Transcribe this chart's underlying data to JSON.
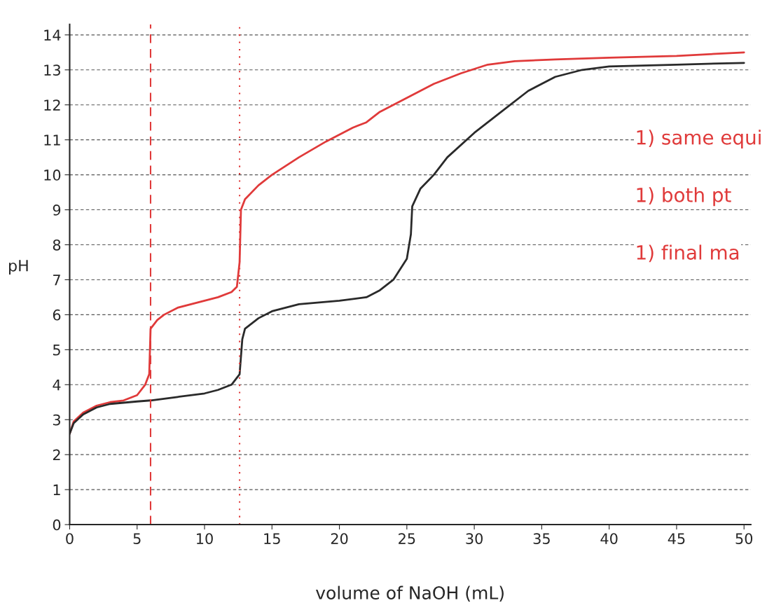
{
  "chart_data": {
    "type": "line",
    "xlabel": "volume of NaOH (mL)",
    "ylabel": "pH",
    "xlim": [
      0,
      50.5
    ],
    "ylim": [
      0,
      14.3
    ],
    "xticks": [
      0,
      5,
      10,
      15,
      20,
      25,
      30,
      35,
      40,
      45,
      50
    ],
    "yticks": [
      0,
      1,
      2,
      3,
      4,
      5,
      6,
      7,
      8,
      9,
      10,
      11,
      12,
      13,
      14
    ],
    "grid": "y",
    "legend": false,
    "marker": "none",
    "line_style": "solid",
    "series": [
      {
        "color": "#e03a3a",
        "x": [
          0,
          0.3,
          1,
          2,
          3,
          4,
          5,
          5.6,
          5.9,
          6.0,
          6.5,
          7,
          8,
          9,
          10,
          11,
          12,
          12.4,
          12.6,
          12.7,
          13,
          14,
          15,
          17,
          19,
          21,
          22,
          23,
          25,
          27,
          29,
          31,
          33,
          36,
          40,
          45,
          50
        ],
        "values": [
          2.6,
          2.95,
          3.2,
          3.4,
          3.5,
          3.55,
          3.7,
          4.0,
          4.3,
          5.6,
          5.85,
          6.0,
          6.2,
          6.3,
          6.4,
          6.5,
          6.65,
          6.8,
          7.5,
          9.0,
          9.3,
          9.7,
          10.0,
          10.5,
          10.95,
          11.35,
          11.5,
          11.8,
          12.2,
          12.6,
          12.9,
          13.15,
          13.25,
          13.3,
          13.35,
          13.4,
          13.5
        ]
      },
      {
        "color": "#2a2a2a",
        "x": [
          0,
          0.3,
          1,
          2,
          3,
          5,
          6,
          8,
          10,
          11,
          12,
          12.6,
          12.8,
          13,
          14,
          15,
          17,
          20,
          22,
          23,
          24,
          25,
          25.3,
          25.4,
          26,
          27,
          28,
          30,
          32,
          34,
          36,
          38,
          40,
          45,
          50
        ],
        "values": [
          2.6,
          2.9,
          3.15,
          3.35,
          3.45,
          3.52,
          3.55,
          3.65,
          3.75,
          3.85,
          4.0,
          4.3,
          5.3,
          5.6,
          5.9,
          6.1,
          6.3,
          6.4,
          6.5,
          6.7,
          7.0,
          7.6,
          8.3,
          9.1,
          9.6,
          10.0,
          10.5,
          11.2,
          11.8,
          12.4,
          12.8,
          13.0,
          13.1,
          13.15,
          13.2
        ]
      }
    ],
    "ref_lines": [
      {
        "axis": "x",
        "value": 6.0,
        "color": "#e03a3a",
        "line_style": "dashed"
      },
      {
        "axis": "x",
        "value": 12.6,
        "color": "#e03a3a",
        "line_style": "dotted"
      }
    ],
    "annotations": [
      "1) same equi",
      "1) both pt",
      "1) final ma"
    ]
  }
}
